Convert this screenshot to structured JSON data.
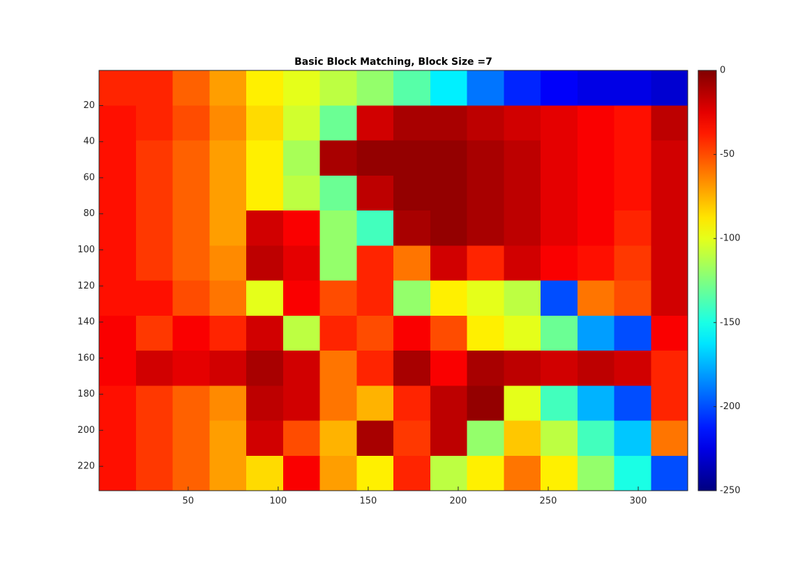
{
  "chart_data": {
    "type": "heatmap",
    "title": "Basic Block Matching, Block Size =7",
    "colormap": "jet",
    "ydir": "reverse",
    "xlim": [
      0.5,
      327.5
    ],
    "ylim": [
      0.5,
      233.5
    ],
    "xticks": [
      50,
      100,
      150,
      200,
      250,
      300
    ],
    "yticks": [
      20,
      40,
      60,
      80,
      100,
      120,
      140,
      160,
      180,
      200,
      220
    ],
    "clim": [
      -250,
      0
    ],
    "cticks": [
      0,
      -50,
      -100,
      -150,
      -200,
      -250
    ],
    "z": [
      [
        -40,
        -40,
        -55,
        -70,
        -90,
        -100,
        -110,
        -120,
        -135,
        -160,
        -190,
        -210,
        -220,
        -225,
        -225,
        -230
      ],
      [
        -35,
        -40,
        -50,
        -65,
        -85,
        -105,
        -130,
        -20,
        -10,
        -10,
        -15,
        -20,
        -25,
        -30,
        -35,
        -15
      ],
      [
        -35,
        -45,
        -55,
        -70,
        -90,
        -115,
        -10,
        -5,
        -5,
        -5,
        -10,
        -15,
        -25,
        -30,
        -35,
        -20
      ],
      [
        -35,
        -45,
        -55,
        -70,
        -90,
        -110,
        -130,
        -15,
        -5,
        -5,
        -10,
        -15,
        -25,
        -30,
        -35,
        -20
      ],
      [
        -35,
        -45,
        -55,
        -70,
        -20,
        -30,
        -120,
        -140,
        -10,
        -5,
        -10,
        -15,
        -25,
        -30,
        -40,
        -20
      ],
      [
        -35,
        -45,
        -55,
        -65,
        -15,
        -25,
        -120,
        -40,
        -60,
        -20,
        -40,
        -20,
        -30,
        -35,
        -45,
        -20
      ],
      [
        -35,
        -35,
        -50,
        -60,
        -100,
        -30,
        -50,
        -40,
        -120,
        -90,
        -100,
        -110,
        -200,
        -60,
        -50,
        -20
      ],
      [
        -30,
        -45,
        -30,
        -40,
        -20,
        -110,
        -40,
        -50,
        -30,
        -50,
        -90,
        -100,
        -130,
        -180,
        -200,
        -30
      ],
      [
        -30,
        -20,
        -25,
        -20,
        -10,
        -20,
        -60,
        -40,
        -10,
        -30,
        -10,
        -15,
        -20,
        -15,
        -20,
        -40
      ],
      [
        -35,
        -45,
        -55,
        -65,
        -15,
        -20,
        -60,
        -75,
        -40,
        -15,
        -5,
        -100,
        -140,
        -175,
        -200,
        -40
      ],
      [
        -35,
        -45,
        -55,
        -70,
        -20,
        -50,
        -75,
        -10,
        -45,
        -15,
        -120,
        -80,
        -110,
        -140,
        -170,
        -60
      ],
      [
        -35,
        -45,
        -55,
        -70,
        -85,
        -30,
        -70,
        -90,
        -40,
        -110,
        -90,
        -60,
        -90,
        -120,
        -150,
        -200
      ]
    ]
  }
}
